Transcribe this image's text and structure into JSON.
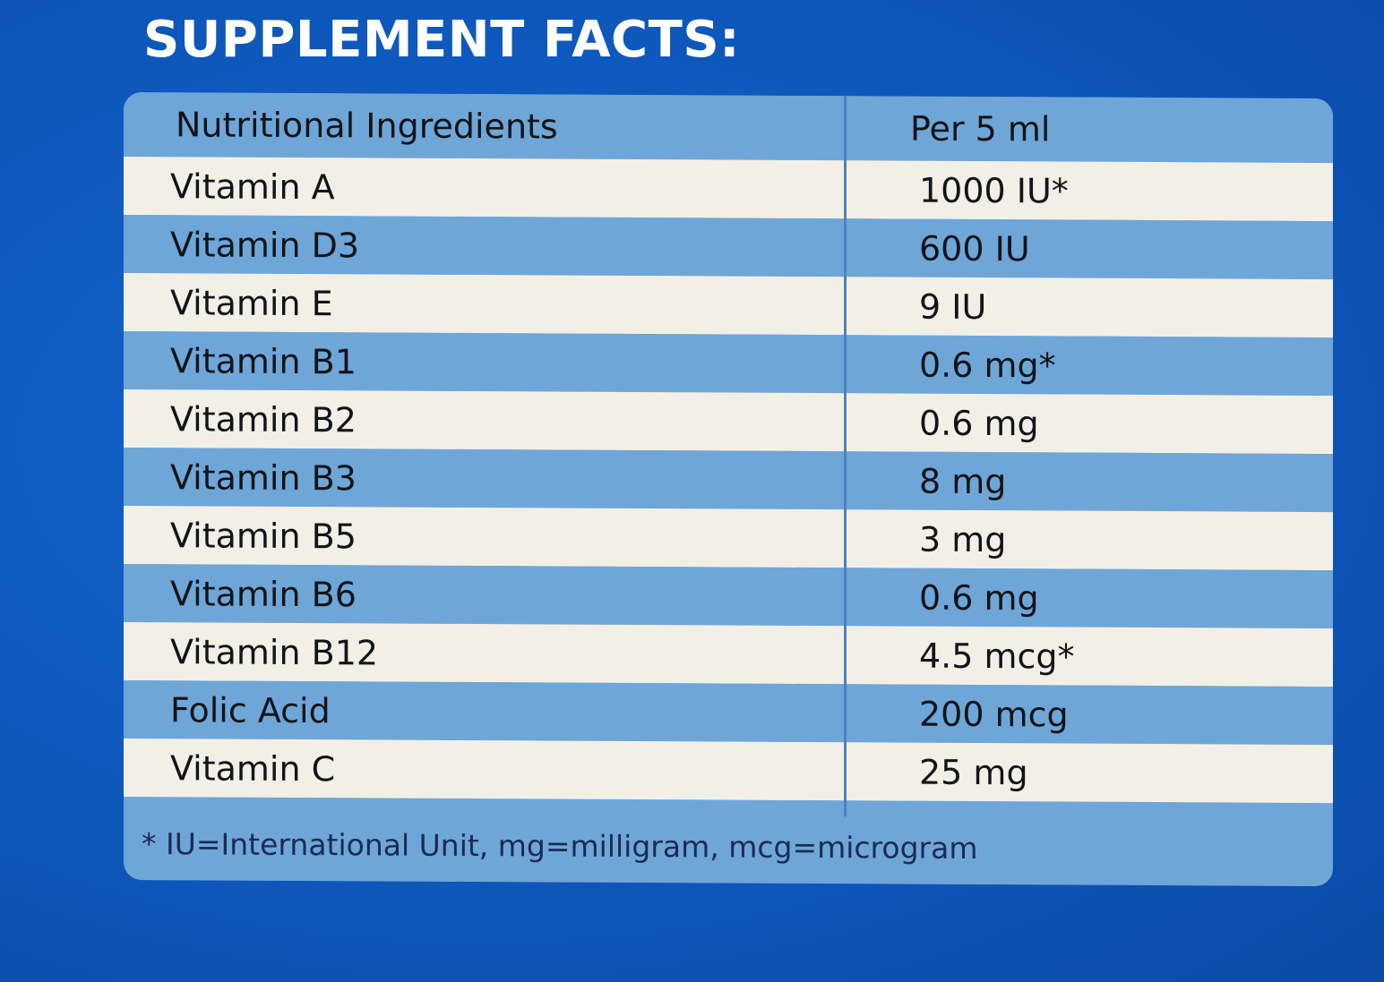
{
  "heading": "SUPPLEMENT FACTS:",
  "table": {
    "header": {
      "ingredient": "Nutritional Ingredients",
      "amount": "Per 5 ml"
    },
    "rows": [
      {
        "ingredient": "Vitamin A",
        "amount": "1000 IU*"
      },
      {
        "ingredient": "Vitamin D3",
        "amount": "600 IU"
      },
      {
        "ingredient": "Vitamin E",
        "amount": "9 IU"
      },
      {
        "ingredient": "Vitamin B1",
        "amount": "0.6 mg*"
      },
      {
        "ingredient": "Vitamin B2",
        "amount": "0.6 mg"
      },
      {
        "ingredient": "Vitamin B3",
        "amount": "8 mg"
      },
      {
        "ingredient": "Vitamin B5",
        "amount": "3 mg"
      },
      {
        "ingredient": "Vitamin B6",
        "amount": "0.6 mg"
      },
      {
        "ingredient": "Vitamin B12",
        "amount": "4.5 mcg*"
      },
      {
        "ingredient": "Folic Acid",
        "amount": "200 mcg"
      },
      {
        "ingredient": "Vitamin C",
        "amount": "25 mg"
      }
    ],
    "footnote": "* IU=International Unit, mg=milligram, mcg=microgram"
  },
  "colors": {
    "background": "#0e58bc",
    "row_blue": "#6fa6d8",
    "row_light": "#f2f0e6",
    "heading_text": "#ffffff"
  }
}
